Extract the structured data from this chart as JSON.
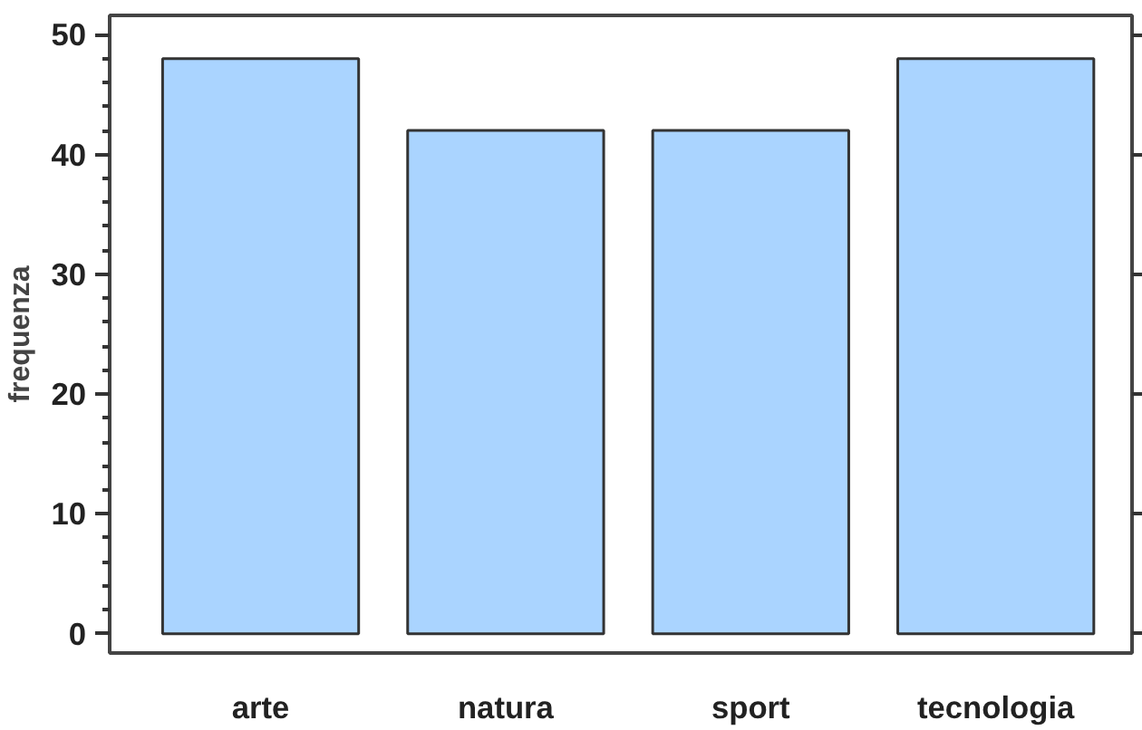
{
  "chart_data": {
    "type": "bar",
    "ylabel": "frequenza",
    "categories": [
      "arte",
      "natura",
      "sport",
      "tecnologia"
    ],
    "values": [
      48,
      42,
      42,
      48
    ],
    "color": "#aad4ff",
    "ylim": [
      -1.6,
      51.6
    ],
    "yticks": [
      0,
      10,
      20,
      30,
      40,
      50
    ],
    "grid": false
  }
}
